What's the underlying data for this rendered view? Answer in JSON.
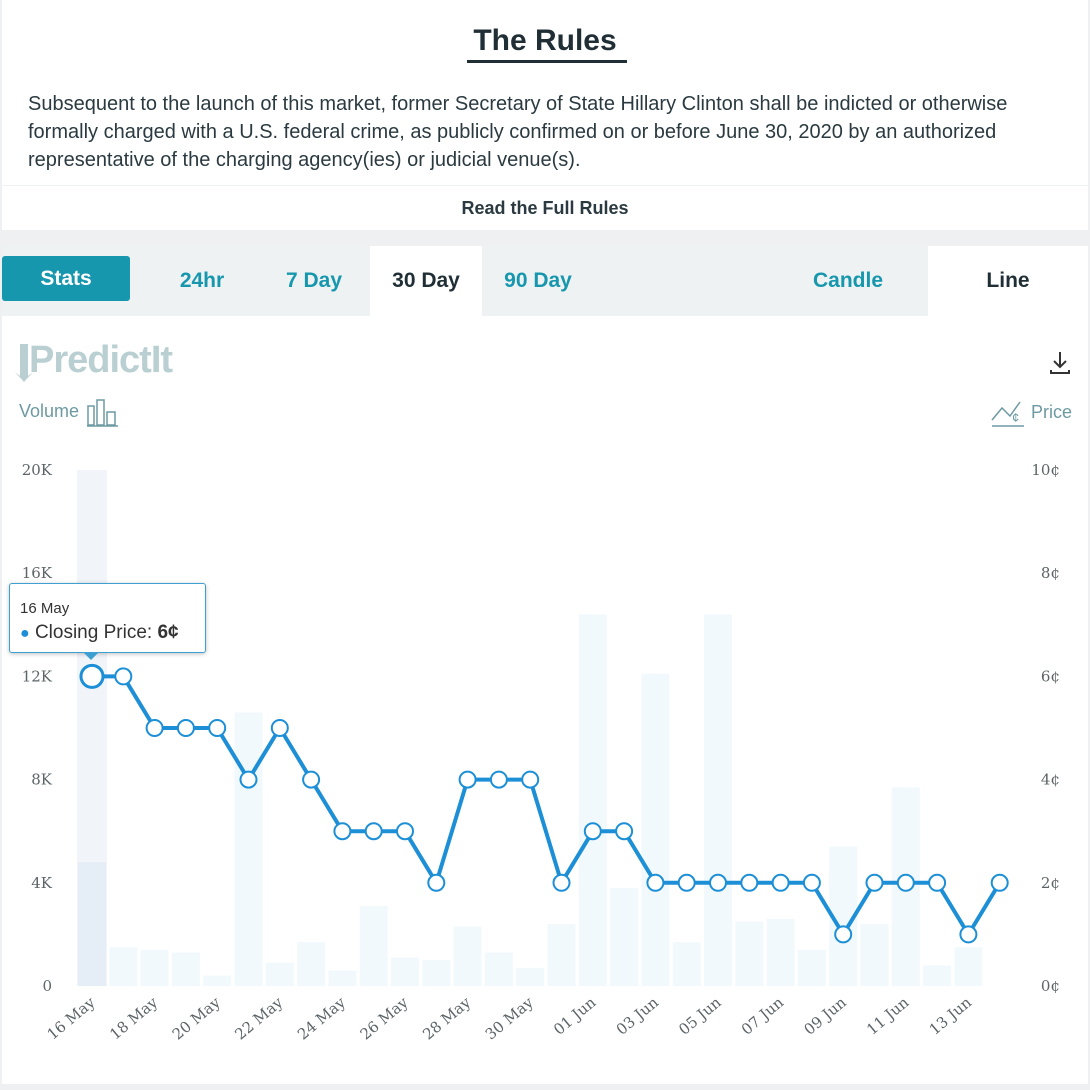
{
  "rules": {
    "title": "The Rules",
    "text": "Subsequent to the launch of this market, former Secretary of State Hillary Clinton shall be indicted or otherwise formally charged with a U.S. federal crime, as publicly confirmed on or before June 30, 2020 by an authorized representative of the charging agency(ies) or judicial venue(s).",
    "read_full": "Read the Full Rules"
  },
  "tabs": {
    "stats": "Stats",
    "h24": "24hr",
    "d7": "7 Day",
    "d30": "30 Day",
    "d90": "90 Day",
    "candle": "Candle",
    "line": "Line"
  },
  "chart": {
    "logo": "PredictIt",
    "volume_label": "Volume",
    "price_label": "Price",
    "icons": {
      "download": "download-icon",
      "volume": "bar-chart-icon",
      "price": "line-chart-icon"
    },
    "colors": {
      "line": "#1c8fd6",
      "bar": "#f2f9fc",
      "bar_highlight": "#e5edf6",
      "tab_accent": "#1797ad"
    },
    "tooltip": {
      "date": "16 May",
      "label": "Closing Price:",
      "value": "6¢"
    }
  },
  "chart_data": {
    "type": "line",
    "x": [
      "16 May",
      "17 May",
      "18 May",
      "19 May",
      "20 May",
      "21 May",
      "22 May",
      "23 May",
      "24 May",
      "25 May",
      "26 May",
      "27 May",
      "28 May",
      "29 May",
      "30 May",
      "31 May",
      "01 Jun",
      "02 Jun",
      "03 Jun",
      "04 Jun",
      "05 Jun",
      "06 Jun",
      "07 Jun",
      "08 Jun",
      "09 Jun",
      "10 Jun",
      "11 Jun",
      "12 Jun",
      "13 Jun",
      "14 Jun"
    ],
    "x_tick_labels": [
      "16 May",
      "18 May",
      "20 May",
      "22 May",
      "24 May",
      "26 May",
      "28 May",
      "30 May",
      "01 Jun",
      "03 Jun",
      "05 Jun",
      "07 Jun",
      "09 Jun",
      "11 Jun",
      "13 Jun"
    ],
    "series": [
      {
        "name": "Price",
        "axis": "right",
        "values": [
          6,
          6,
          5,
          5,
          5,
          4,
          5,
          4,
          3,
          3,
          3,
          2,
          4,
          4,
          4,
          2,
          3,
          3,
          2,
          2,
          2,
          2,
          2,
          2,
          1,
          2,
          2,
          2,
          1,
          2
        ]
      },
      {
        "name": "Volume",
        "axis": "left",
        "type": "bar",
        "values": [
          4800,
          1500,
          1400,
          1300,
          400,
          10600,
          900,
          1700,
          600,
          3100,
          1100,
          1000,
          2300,
          1300,
          700,
          2400,
          14400,
          3800,
          12100,
          1700,
          14400,
          2500,
          2600,
          1400,
          5400,
          2400,
          7700,
          800,
          1500,
          null
        ]
      }
    ],
    "y_left": {
      "ticks": [
        "0",
        "4K",
        "8K",
        "12K",
        "16K",
        "20K"
      ],
      "range": [
        0,
        20000
      ]
    },
    "y_right": {
      "ticks": [
        "0¢",
        "2¢",
        "4¢",
        "6¢",
        "8¢",
        "10¢"
      ],
      "range": [
        0,
        10
      ]
    },
    "highlight_index": 0
  }
}
